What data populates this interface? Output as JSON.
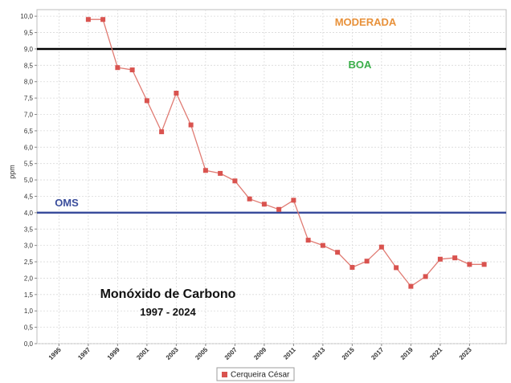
{
  "chart_data": {
    "type": "line",
    "title": "Monóxido de Carbono",
    "subtitle": "1997 - 2024",
    "ylabel": "ppm",
    "xlabel": "",
    "xlim": [
      1993.5,
      2025.5
    ],
    "ylim": [
      0,
      10.2
    ],
    "y_ticks": [
      "0,0",
      "0,5",
      "1,0",
      "1,5",
      "2,0",
      "2,5",
      "3,0",
      "3,5",
      "4,0",
      "4,5",
      "5,0",
      "5,5",
      "6,0",
      "6,5",
      "7,0",
      "7,5",
      "8,0",
      "8,5",
      "9,0",
      "9,5",
      "10,0"
    ],
    "x_ticks": [
      "1995",
      "1997",
      "1999",
      "2001",
      "2003",
      "2005",
      "2007",
      "2009",
      "2011",
      "2013",
      "2015",
      "2017",
      "2019",
      "2021",
      "2023"
    ],
    "grid": true,
    "legend_position": "bottom-center",
    "series": [
      {
        "name": "Cerqueira César",
        "color": "#e07b73",
        "marker_color": "#d9534f",
        "x": [
          1997,
          1998,
          1999,
          2000,
          2001,
          2002,
          2003,
          2004,
          2005,
          2006,
          2007,
          2008,
          2009,
          2010,
          2011,
          2012,
          2013,
          2014,
          2015,
          2016,
          2017,
          2018,
          2019,
          2020,
          2021,
          2022,
          2023,
          2024
        ],
        "y": [
          9.9,
          9.9,
          8.43,
          8.36,
          7.42,
          6.47,
          7.65,
          6.68,
          5.29,
          5.2,
          4.97,
          4.42,
          4.26,
          4.1,
          4.38,
          3.16,
          3.0,
          2.79,
          2.33,
          2.52,
          2.95,
          2.32,
          1.75,
          2.05,
          2.58,
          2.62,
          2.42,
          2.42
        ]
      }
    ],
    "reference_lines": [
      {
        "label": "MODERADA",
        "value": 9.0,
        "color": "#000000",
        "label_color": "#e8913a"
      },
      {
        "label": "BOA",
        "value": 9.0,
        "color": "#000000",
        "label_color": "#3aae49"
      },
      {
        "label": "OMS",
        "value": 4.0,
        "color": "#3a4d9c",
        "label_color": "#3a4d9c"
      }
    ]
  }
}
